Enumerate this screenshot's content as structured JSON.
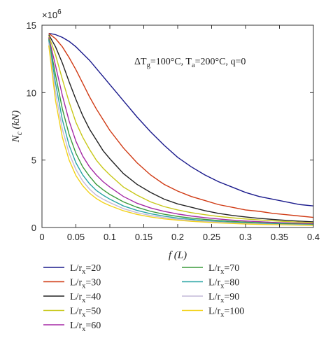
{
  "chart_data": {
    "type": "line",
    "title": "",
    "xlabel": "f (L)",
    "ylabel": "N_c (kN)",
    "y_multiplier": "×10^6",
    "annotation": "ΔT_g=100°C, T_a=200°C, q=0",
    "xlim": [
      0,
      0.4
    ],
    "ylim": [
      0,
      15
    ],
    "xticks": [
      0,
      0.05,
      0.1,
      0.15,
      0.2,
      0.25,
      0.3,
      0.35,
      0.4
    ],
    "xtick_labels": [
      "0",
      "0.05",
      "0.1",
      "0.15",
      "0.2",
      "0.25",
      "0.3",
      "0.35",
      "0.4"
    ],
    "yticks": [
      0,
      5,
      10,
      15
    ],
    "ytick_labels": [
      "0",
      "5",
      "10",
      "15"
    ],
    "grid": false,
    "legend_position": "bottom",
    "x": [
      0.01,
      0.02,
      0.03,
      0.04,
      0.05,
      0.06,
      0.07,
      0.08,
      0.09,
      0.1,
      0.12,
      0.14,
      0.16,
      0.18,
      0.2,
      0.22,
      0.24,
      0.26,
      0.28,
      0.3,
      0.32,
      0.34,
      0.36,
      0.38,
      0.4
    ],
    "series": [
      {
        "name": "L/r_x=20",
        "color": "#1a1a8c",
        "values": [
          14.4,
          14.3,
          14.1,
          13.8,
          13.4,
          12.9,
          12.4,
          11.8,
          11.2,
          10.6,
          9.4,
          8.2,
          7.1,
          6.1,
          5.2,
          4.5,
          3.9,
          3.4,
          3.0,
          2.6,
          2.3,
          2.1,
          1.9,
          1.7,
          1.6
        ]
      },
      {
        "name": "L/r_x=30",
        "color": "#d03a14",
        "values": [
          14.4,
          14.0,
          13.4,
          12.6,
          11.7,
          10.7,
          9.7,
          8.8,
          8.0,
          7.2,
          5.9,
          4.8,
          3.9,
          3.2,
          2.7,
          2.3,
          2.0,
          1.7,
          1.5,
          1.3,
          1.2,
          1.05,
          0.95,
          0.85,
          0.75
        ]
      },
      {
        "name": "L/r_x=40",
        "color": "#222222",
        "values": [
          14.3,
          13.4,
          12.2,
          10.8,
          9.5,
          8.3,
          7.3,
          6.5,
          5.7,
          5.1,
          4.0,
          3.2,
          2.6,
          2.1,
          1.75,
          1.5,
          1.25,
          1.05,
          0.9,
          0.78,
          0.68,
          0.6,
          0.53,
          0.47,
          0.42
        ]
      },
      {
        "name": "L/r_x=50",
        "color": "#c8c81a",
        "values": [
          14.2,
          12.8,
          11.0,
          9.3,
          7.8,
          6.7,
          5.8,
          5.0,
          4.4,
          3.9,
          3.0,
          2.4,
          1.9,
          1.55,
          1.3,
          1.1,
          0.95,
          0.82,
          0.72,
          0.63,
          0.56,
          0.5,
          0.44,
          0.4,
          0.36
        ]
      },
      {
        "name": "L/r_x=60",
        "color": "#a52aa5",
        "values": [
          14.1,
          12.0,
          9.8,
          7.9,
          6.4,
          5.3,
          4.5,
          3.9,
          3.4,
          3.0,
          2.3,
          1.8,
          1.45,
          1.2,
          1.0,
          0.85,
          0.73,
          0.63,
          0.55,
          0.48,
          0.43,
          0.38,
          0.34,
          0.31,
          0.28
        ]
      },
      {
        "name": "L/r_x=70",
        "color": "#3a9a3a",
        "values": [
          14.0,
          11.3,
          8.8,
          6.9,
          5.5,
          4.5,
          3.8,
          3.2,
          2.8,
          2.45,
          1.9,
          1.5,
          1.2,
          0.98,
          0.82,
          0.7,
          0.6,
          0.52,
          0.45,
          0.4,
          0.35,
          0.31,
          0.28,
          0.25,
          0.23
        ]
      },
      {
        "name": "L/r_x=80",
        "color": "#2aa5a5",
        "values": [
          13.9,
          10.7,
          8.0,
          6.1,
          4.8,
          3.9,
          3.25,
          2.75,
          2.4,
          2.1,
          1.6,
          1.27,
          1.02,
          0.84,
          0.7,
          0.6,
          0.51,
          0.44,
          0.39,
          0.34,
          0.3,
          0.27,
          0.24,
          0.22,
          0.2
        ]
      },
      {
        "name": "L/r_x=90",
        "color": "#c4b8d8",
        "values": [
          13.7,
          10.0,
          7.3,
          5.5,
          4.3,
          3.45,
          2.85,
          2.4,
          2.1,
          1.85,
          1.4,
          1.1,
          0.89,
          0.73,
          0.61,
          0.52,
          0.45,
          0.39,
          0.34,
          0.3,
          0.26,
          0.23,
          0.21,
          0.19,
          0.17
        ]
      },
      {
        "name": "L/r_x=100",
        "color": "#f2d21a",
        "values": [
          13.5,
          9.4,
          6.7,
          5.0,
          3.85,
          3.1,
          2.55,
          2.15,
          1.85,
          1.62,
          1.24,
          0.97,
          0.78,
          0.64,
          0.54,
          0.46,
          0.4,
          0.34,
          0.3,
          0.26,
          0.23,
          0.21,
          0.19,
          0.17,
          0.15
        ]
      }
    ]
  }
}
